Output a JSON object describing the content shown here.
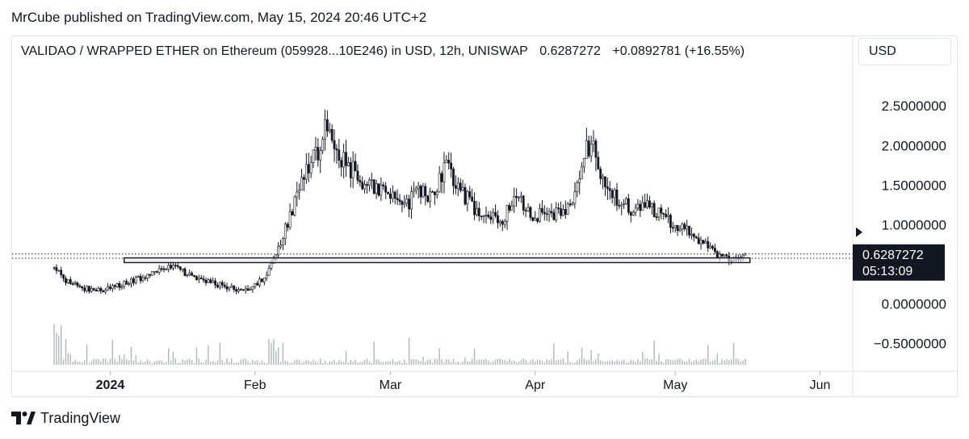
{
  "header": {
    "publisher": "MrCube published on TradingView.com, May 15, 2024 20:46 UTC+2"
  },
  "symbol": {
    "name": "VALIDAO / WRAPPED ETHER on Ethereum (059928...10E246) in USD, 12h, UNISWAP",
    "last": "0.6287272",
    "change": "+0.0892781",
    "change_pct": "(+16.55%)"
  },
  "currency_button": "USD",
  "price_label": {
    "value": "0.6287272",
    "countdown": "05:13:09"
  },
  "brand": "TradingView",
  "colors": {
    "candles": "#131722",
    "volume": "#b2b5be",
    "price_label_bg": "#131722",
    "price_label_text": "#ffffff",
    "zone_fill": "#e8e8e8",
    "zone_stroke": "#131722",
    "text": "#131722",
    "border": "#e0e3eb"
  },
  "icons": {
    "logo": "tradingview-logo-icon",
    "marker": "price-marker-arrow-icon"
  },
  "chart_data": {
    "type": "candlestick",
    "title": "VALIDAO / WRAPPED ETHER on Ethereum (059928...10E246) in USD, 12h, UNISWAP",
    "interval": "12h",
    "y_tick_labels": [
      "2.5000000",
      "2.0000000",
      "1.5000000",
      "1.0000000",
      "0.0000000",
      "−0.5000000"
    ],
    "y_ticks": [
      2.5,
      2.0,
      1.5,
      1.0,
      0.0,
      -0.5
    ],
    "ylim": [
      -0.75,
      2.9
    ],
    "x_tick_labels": [
      "2024",
      "Feb",
      "Mar",
      "Apr",
      "May",
      "Jun"
    ],
    "x_ticks": [
      "2024-01-01",
      "2024-02-01",
      "2024-03-01",
      "2024-04-01",
      "2024-05-01",
      "2024-06-01"
    ],
    "xlim": [
      "2023-12-11",
      "2024-06-08"
    ],
    "last_price": 0.6287272,
    "last_price_line": true,
    "horizontal_lines": [
      0.6287272,
      0.575
    ],
    "zone": {
      "from": "2024-01-04",
      "to": "2024-05-17",
      "low": 0.52,
      "high": 0.58
    },
    "grid": false,
    "legend": "none",
    "price_path": [
      [
        "2023-12-20",
        0.45
      ],
      [
        "2023-12-22",
        0.32
      ],
      [
        "2023-12-25",
        0.22
      ],
      [
        "2023-12-28",
        0.17
      ],
      [
        "2024-01-01",
        0.2
      ],
      [
        "2024-01-05",
        0.27
      ],
      [
        "2024-01-09",
        0.36
      ],
      [
        "2024-01-12",
        0.46
      ],
      [
        "2024-01-14",
        0.48
      ],
      [
        "2024-01-17",
        0.39
      ],
      [
        "2024-01-20",
        0.32
      ],
      [
        "2024-01-24",
        0.24
      ],
      [
        "2024-01-28",
        0.17
      ],
      [
        "2024-01-31",
        0.2
      ],
      [
        "2024-02-03",
        0.33
      ],
      [
        "2024-02-06",
        0.7
      ],
      [
        "2024-02-08",
        1.05
      ],
      [
        "2024-02-11",
        1.55
      ],
      [
        "2024-02-14",
        1.85
      ],
      [
        "2024-02-16",
        2.25
      ],
      [
        "2024-02-18",
        2.0
      ],
      [
        "2024-02-21",
        1.75
      ],
      [
        "2024-02-24",
        1.55
      ],
      [
        "2024-02-27",
        1.45
      ],
      [
        "2024-03-01",
        1.4
      ],
      [
        "2024-03-04",
        1.2
      ],
      [
        "2024-03-07",
        1.45
      ],
      [
        "2024-03-10",
        1.35
      ],
      [
        "2024-03-13",
        1.75
      ],
      [
        "2024-03-16",
        1.45
      ],
      [
        "2024-03-19",
        1.2
      ],
      [
        "2024-03-22",
        1.1
      ],
      [
        "2024-03-25",
        1.05
      ],
      [
        "2024-03-28",
        1.35
      ],
      [
        "2024-03-31",
        1.15
      ],
      [
        "2024-04-03",
        1.1
      ],
      [
        "2024-04-06",
        1.15
      ],
      [
        "2024-04-09",
        1.2
      ],
      [
        "2024-04-11",
        1.85
      ],
      [
        "2024-04-13",
        2.0
      ],
      [
        "2024-04-16",
        1.55
      ],
      [
        "2024-04-19",
        1.3
      ],
      [
        "2024-04-22",
        1.2
      ],
      [
        "2024-04-25",
        1.25
      ],
      [
        "2024-04-28",
        1.1
      ],
      [
        "2024-05-01",
        0.98
      ],
      [
        "2024-05-04",
        0.9
      ],
      [
        "2024-05-07",
        0.78
      ],
      [
        "2024-05-10",
        0.62
      ],
      [
        "2024-05-13",
        0.57
      ],
      [
        "2024-05-15",
        0.55
      ],
      [
        "2024-05-16",
        0.63
      ]
    ]
  }
}
